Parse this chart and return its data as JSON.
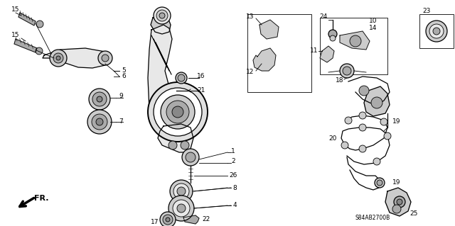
{
  "bg_color": "#ffffff",
  "diagram_code": "S84AB2700B",
  "fig_width": 6.4,
  "fig_height": 3.19,
  "dpi": 100,
  "line_color": "#000000",
  "text_color": "#000000",
  "label_fontsize": 6.5,
  "diagram_fontsize": 5.5,
  "gray_fill": "#cccccc",
  "dark_gray": "#888888",
  "light_gray": "#e8e8e8",
  "mid_gray": "#aaaaaa"
}
